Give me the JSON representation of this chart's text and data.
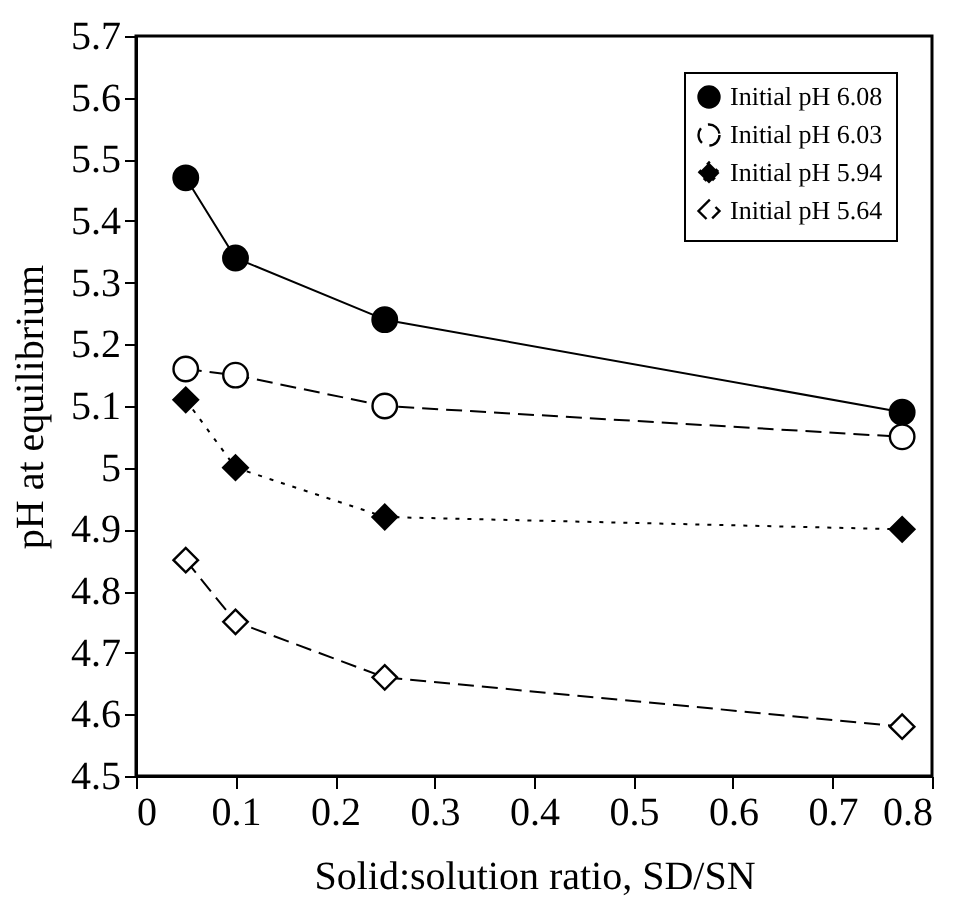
{
  "chart_data": {
    "type": "line",
    "xlabel": "Solid:solution ratio, SD/SN",
    "ylabel": "pH at equilibrium",
    "x": [
      0.05,
      0.1,
      0.25,
      0.77
    ],
    "series": [
      {
        "name": "Initial pH 6.08",
        "color": "#000000",
        "marker": "circle",
        "line_style": "solid",
        "values": [
          5.47,
          5.34,
          5.24,
          5.09
        ]
      },
      {
        "name": "Initial pH 6.03",
        "color": "#000000",
        "marker": "circle",
        "line_style": "dashed",
        "values": [
          5.16,
          5.15,
          5.1,
          5.05
        ]
      },
      {
        "name": "Initial pH 5.94",
        "color": "#000000",
        "marker": "diamond",
        "line_style": "dotted",
        "values": [
          5.11,
          5.0,
          4.92,
          4.9
        ]
      },
      {
        "name": "Initial pH 5.64",
        "color": "#000000",
        "marker": "diamond",
        "line_style": "dashed",
        "values": [
          4.85,
          4.75,
          4.66,
          4.58
        ]
      }
    ],
    "xlim": [
      0,
      0.8
    ],
    "xticks": [
      0,
      0.1,
      0.2,
      0.3,
      0.4,
      0.5,
      0.6,
      0.7,
      0.8
    ],
    "ylim": [
      4.5,
      5.7
    ],
    "yticks": [
      4.5,
      4.6,
      4.7,
      4.8,
      4.9,
      5,
      5.1,
      5.2,
      5.3,
      5.4,
      5.5,
      5.6,
      5.7
    ],
    "grid": false,
    "legend": "top right"
  }
}
